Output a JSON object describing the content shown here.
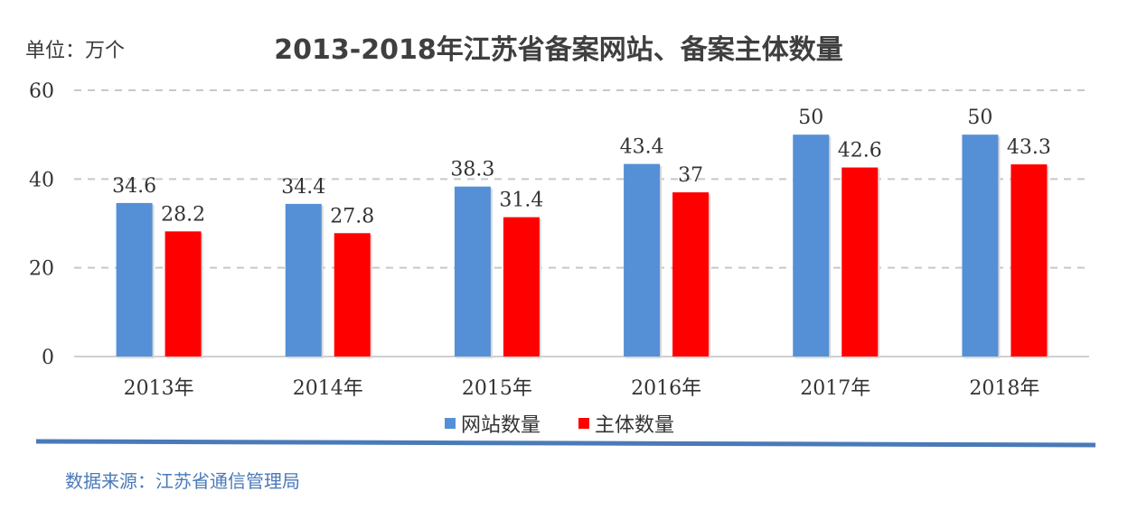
{
  "unit_label": "单位：万个",
  "source_note": "数据来源：江苏省通信管理局",
  "colors": {
    "website": "#5590d6",
    "entity": "#ff0000",
    "grid": "#c8c8c8",
    "rule": "#4a7ab8"
  },
  "chart_data": {
    "type": "bar",
    "title": "2013-2018年江苏省备案网站、备案主体数量",
    "categories": [
      "2013年",
      "2014年",
      "2015年",
      "2016年",
      "2017年",
      "2018年"
    ],
    "series": [
      {
        "name": "网站数量",
        "values": [
          34.6,
          34.4,
          38.3,
          43.4,
          50,
          50
        ]
      },
      {
        "name": "主体数量",
        "values": [
          28.2,
          27.8,
          31.4,
          37,
          42.6,
          43.3
        ]
      }
    ],
    "yticks": [
      "0",
      "20",
      "40",
      "60"
    ],
    "ylim": [
      0,
      60
    ],
    "grid": true,
    "legend_position": "bottom"
  }
}
